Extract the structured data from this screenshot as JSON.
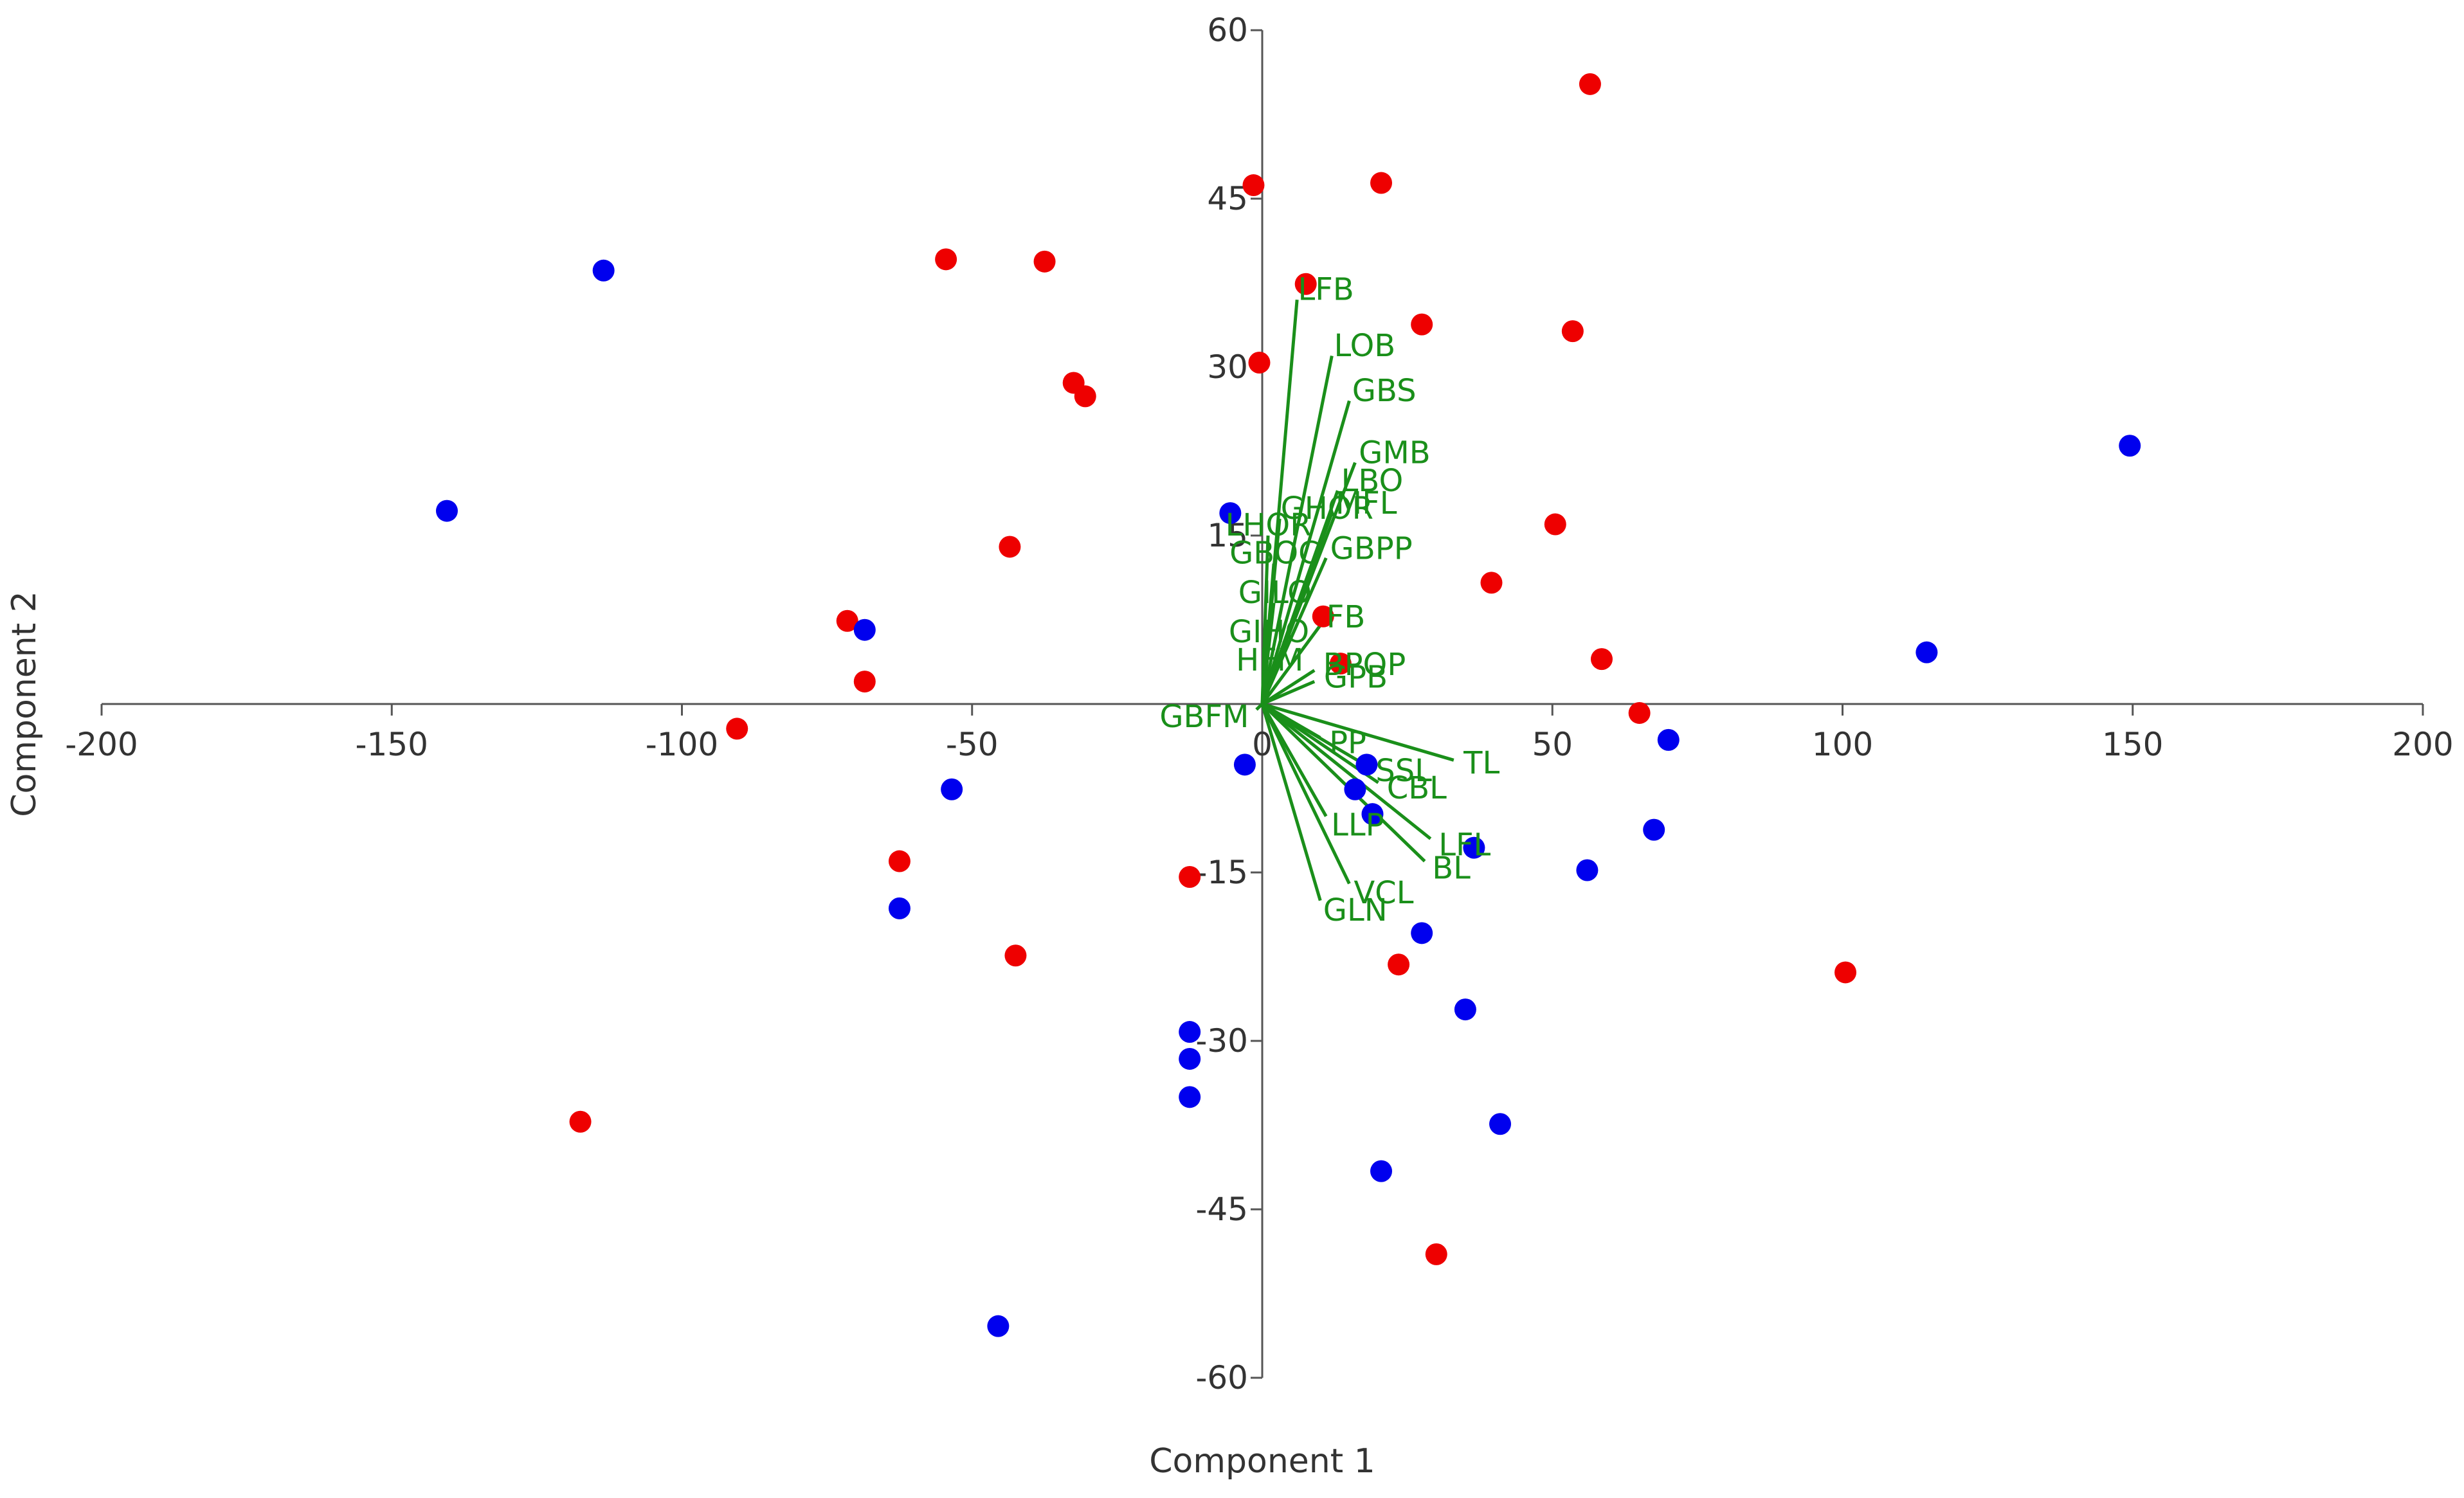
{
  "chart_data": {
    "type": "scatter",
    "subtype": "biplot",
    "title": "",
    "xlabel": "Component 1",
    "ylabel": "Component 2",
    "xlim": [
      -200,
      200
    ],
    "ylim": [
      -60,
      60
    ],
    "xticks": [
      -200,
      -150,
      -100,
      -50,
      0,
      50,
      100,
      150,
      200
    ],
    "yticks": [
      -60,
      -45,
      -30,
      -15,
      15,
      30,
      45,
      60
    ],
    "grid": false,
    "legend": "none",
    "colors": {
      "series1": "#ee0000",
      "series2": "#0000ee",
      "vectors": "#1a8f1a"
    },
    "series": [
      {
        "color": "#ee0000",
        "points": [
          [
            56.5,
            55.2
          ],
          [
            -1.5,
            46.2
          ],
          [
            20.5,
            46.4
          ],
          [
            -54.5,
            39.6
          ],
          [
            -37.5,
            39.4
          ],
          [
            7.5,
            37.4
          ],
          [
            27.5,
            33.8
          ],
          [
            53.5,
            33.2
          ],
          [
            -0.5,
            30.4
          ],
          [
            -32.5,
            28.6
          ],
          [
            -30.5,
            27.4
          ],
          [
            50.5,
            16.0
          ],
          [
            -43.5,
            14.0
          ],
          [
            39.5,
            10.8
          ],
          [
            10.5,
            7.8
          ],
          [
            -71.5,
            7.4
          ],
          [
            58.5,
            4.0
          ],
          [
            13.5,
            3.6
          ],
          [
            -68.5,
            2.0
          ],
          [
            65.0,
            -0.8
          ],
          [
            -90.5,
            -2.2
          ],
          [
            -62.5,
            -14.0
          ],
          [
            -12.5,
            -15.4
          ],
          [
            -42.5,
            -22.4
          ],
          [
            23.5,
            -23.2
          ],
          [
            100.5,
            -23.9
          ],
          [
            -117.5,
            -37.2
          ],
          [
            30.0,
            -49.0
          ]
        ]
      },
      {
        "color": "#0000ee",
        "points": [
          [
            -113.5,
            38.6
          ],
          [
            149.5,
            23.0
          ],
          [
            -140.5,
            17.2
          ],
          [
            -5.5,
            17.0
          ],
          [
            -68.5,
            6.6
          ],
          [
            114.5,
            4.6
          ],
          [
            70.0,
            -3.2
          ],
          [
            -3.0,
            -5.4
          ],
          [
            18.0,
            -5.4
          ],
          [
            -53.5,
            -7.6
          ],
          [
            16.0,
            -7.6
          ],
          [
            19.0,
            -9.8
          ],
          [
            67.5,
            -11.2
          ],
          [
            36.5,
            -12.8
          ],
          [
            56.0,
            -14.8
          ],
          [
            -62.5,
            -18.2
          ],
          [
            27.5,
            -20.4
          ],
          [
            -12.5,
            -29.2
          ],
          [
            35.0,
            -27.2
          ],
          [
            -12.5,
            -31.6
          ],
          [
            -12.5,
            -35.0
          ],
          [
            41.0,
            -37.4
          ],
          [
            20.5,
            -41.6
          ],
          [
            -45.5,
            -55.4
          ]
        ]
      }
    ],
    "vectors": [
      {
        "label": "LFB",
        "x": 6.0,
        "y": 36.0
      },
      {
        "label": "LOB",
        "x": 12.0,
        "y": 31.0
      },
      {
        "label": "GBS",
        "x": 15.0,
        "y": 27.0
      },
      {
        "label": "GMB",
        "x": 16.0,
        "y": 21.5
      },
      {
        "label": "LBO",
        "x": 13.0,
        "y": 19.0
      },
      {
        "label": "MFL",
        "x": 12.0,
        "y": 17.0
      },
      {
        "label": "GHOR",
        "x": 3.0,
        "y": 16.5
      },
      {
        "label": "LHOR",
        "x": 1.0,
        "y": 15.0
      },
      {
        "label": "GBPP",
        "x": 11.0,
        "y": 13.0
      },
      {
        "label": "GBOC",
        "x": 2.0,
        "y": 12.5
      },
      {
        "label": "GILO",
        "x": 2.0,
        "y": 9.0
      },
      {
        "label": "FB",
        "x": 10.0,
        "y": 7.0
      },
      {
        "label": "GIHO",
        "x": 1.0,
        "y": 5.5
      },
      {
        "label": "HFM",
        "x": 1.0,
        "y": 3.0
      },
      {
        "label": "BPOP",
        "x": 9.0,
        "y": 3.0
      },
      {
        "label": "GPB",
        "x": 9.0,
        "y": 2.0
      },
      {
        "label": "GBFM",
        "x": -1.0,
        "y": -0.5
      },
      {
        "label": "PP",
        "x": 10.0,
        "y": -3.0
      },
      {
        "label": "SSL",
        "x": 18.0,
        "y": -5.5
      },
      {
        "label": "TL",
        "x": 33.0,
        "y": -5.0
      },
      {
        "label": "CBL",
        "x": 20.0,
        "y": -7.0
      },
      {
        "label": "LLP",
        "x": 11.0,
        "y": -10.0
      },
      {
        "label": "LFL",
        "x": 29.0,
        "y": -12.0
      },
      {
        "label": "GLN",
        "x": 10.0,
        "y": -17.5
      },
      {
        "label": "VCL",
        "x": 15.0,
        "y": -16.0
      },
      {
        "label": "BL",
        "x": 28.0,
        "y": -14.0
      }
    ]
  }
}
